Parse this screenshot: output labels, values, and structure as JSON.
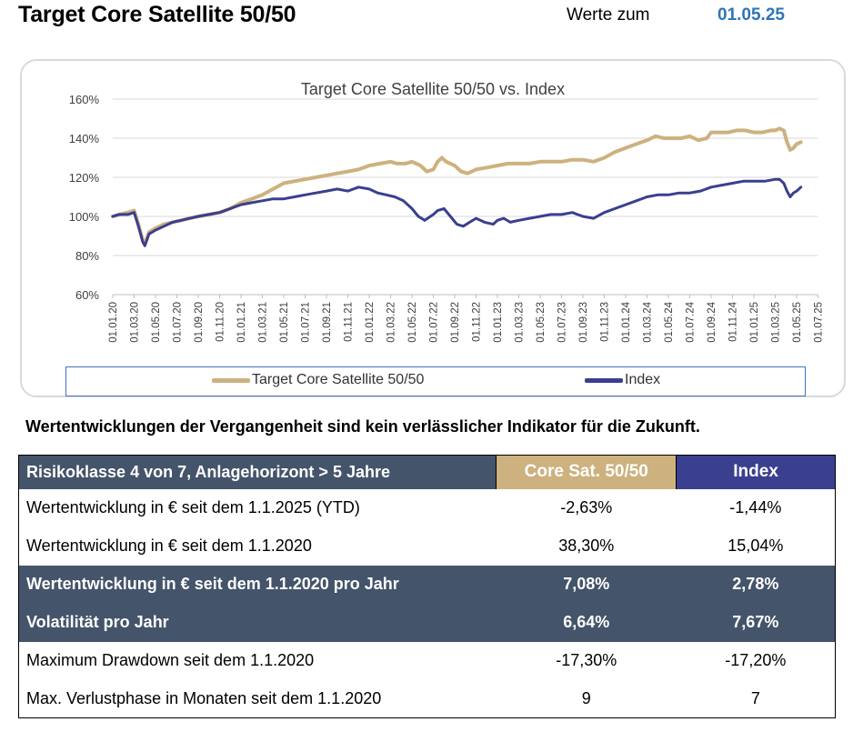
{
  "header": {
    "title": "Target Core Satellite 50/50",
    "date_label": "Werte zum",
    "date_value": "01.05.25"
  },
  "colors": {
    "portfolio": "#cdb17f",
    "index": "#3a3f8f",
    "table_dark": "#44546a",
    "date_accent": "#2e75b6"
  },
  "chart_data": {
    "type": "line",
    "title": "Target Core Satellite 50/50 vs. Index",
    "y_ticks": [
      "60%",
      "80%",
      "100%",
      "120%",
      "140%",
      "160%"
    ],
    "ylim": [
      60,
      160
    ],
    "x_ticks": [
      "01.01.20",
      "01.03.20",
      "01.05.20",
      "01.07.20",
      "01.09.20",
      "01.11.20",
      "01.01.21",
      "01.03.21",
      "01.05.21",
      "01.07.21",
      "01.09.21",
      "01.11.21",
      "01.01.22",
      "01.03.22",
      "01.05.22",
      "01.07.22",
      "01.09.22",
      "01.11.22",
      "01.01.23",
      "01.03.23",
      "01.05.23",
      "01.07.23",
      "01.09.23",
      "01.11.23",
      "01.01.24",
      "01.03.24",
      "01.05.24",
      "01.07.24",
      "01.09.24",
      "01.11.24",
      "01.01.25",
      "01.03.25",
      "01.05.25",
      "01.07.25"
    ],
    "grid": "horizontal",
    "legend_position": "bottom",
    "series": [
      {
        "name": "Target Core Satellite 50/50",
        "points": [
          [
            0,
            100
          ],
          [
            0.3,
            101
          ],
          [
            0.7,
            102
          ],
          [
            1,
            103
          ],
          [
            1.2,
            96
          ],
          [
            1.4,
            88
          ],
          [
            1.5,
            86
          ],
          [
            1.7,
            92
          ],
          [
            2,
            94
          ],
          [
            2.4,
            96
          ],
          [
            2.8,
            97
          ],
          [
            3.2,
            98
          ],
          [
            3.6,
            99
          ],
          [
            4,
            100
          ],
          [
            4.5,
            101
          ],
          [
            5,
            102
          ],
          [
            5.5,
            104
          ],
          [
            6,
            107
          ],
          [
            6.5,
            109
          ],
          [
            7,
            111
          ],
          [
            7.5,
            114
          ],
          [
            8,
            117
          ],
          [
            8.5,
            118
          ],
          [
            9,
            119
          ],
          [
            9.5,
            120
          ],
          [
            10,
            121
          ],
          [
            10.5,
            122
          ],
          [
            11,
            123
          ],
          [
            11.5,
            124
          ],
          [
            12,
            126
          ],
          [
            12.5,
            127
          ],
          [
            13,
            128
          ],
          [
            13.3,
            127
          ],
          [
            13.7,
            127
          ],
          [
            14,
            128
          ],
          [
            14.4,
            126
          ],
          [
            14.7,
            123
          ],
          [
            15,
            124
          ],
          [
            15.2,
            128
          ],
          [
            15.4,
            130
          ],
          [
            15.6,
            128
          ],
          [
            16,
            126
          ],
          [
            16.3,
            123
          ],
          [
            16.6,
            122
          ],
          [
            17,
            124
          ],
          [
            17.5,
            125
          ],
          [
            18,
            126
          ],
          [
            18.5,
            127
          ],
          [
            19,
            127
          ],
          [
            19.5,
            127
          ],
          [
            20,
            128
          ],
          [
            20.5,
            128
          ],
          [
            21,
            128
          ],
          [
            21.5,
            129
          ],
          [
            22,
            129
          ],
          [
            22.5,
            128
          ],
          [
            23,
            130
          ],
          [
            23.5,
            133
          ],
          [
            24,
            135
          ],
          [
            24.5,
            137
          ],
          [
            25,
            139
          ],
          [
            25.4,
            141
          ],
          [
            25.8,
            140
          ],
          [
            26.2,
            140
          ],
          [
            26.6,
            140
          ],
          [
            27,
            141
          ],
          [
            27.4,
            139
          ],
          [
            27.8,
            140
          ],
          [
            28,
            143
          ],
          [
            28.4,
            143
          ],
          [
            28.8,
            143
          ],
          [
            29.2,
            144
          ],
          [
            29.6,
            144
          ],
          [
            30,
            143
          ],
          [
            30.4,
            143
          ],
          [
            30.8,
            144
          ],
          [
            31,
            144
          ],
          [
            31.2,
            145
          ],
          [
            31.4,
            144
          ],
          [
            31.55,
            138
          ],
          [
            31.7,
            134
          ],
          [
            31.85,
            135
          ],
          [
            32,
            137
          ],
          [
            32.2,
            138
          ]
        ]
      },
      {
        "name": "Index",
        "points": [
          [
            0,
            100
          ],
          [
            0.3,
            101
          ],
          [
            0.7,
            101
          ],
          [
            1,
            102
          ],
          [
            1.2,
            95
          ],
          [
            1.4,
            87
          ],
          [
            1.5,
            85
          ],
          [
            1.7,
            91
          ],
          [
            2,
            93
          ],
          [
            2.4,
            95
          ],
          [
            2.8,
            97
          ],
          [
            3.2,
            98
          ],
          [
            3.6,
            99
          ],
          [
            4,
            100
          ],
          [
            4.5,
            101
          ],
          [
            5,
            102
          ],
          [
            5.5,
            104
          ],
          [
            6,
            106
          ],
          [
            6.5,
            107
          ],
          [
            7,
            108
          ],
          [
            7.5,
            109
          ],
          [
            8,
            109
          ],
          [
            8.5,
            110
          ],
          [
            9,
            111
          ],
          [
            9.5,
            112
          ],
          [
            10,
            113
          ],
          [
            10.5,
            114
          ],
          [
            11,
            113
          ],
          [
            11.5,
            115
          ],
          [
            12,
            114
          ],
          [
            12.4,
            112
          ],
          [
            12.8,
            111
          ],
          [
            13.2,
            110
          ],
          [
            13.6,
            108
          ],
          [
            14,
            104
          ],
          [
            14.3,
            100
          ],
          [
            14.6,
            98
          ],
          [
            15,
            101
          ],
          [
            15.2,
            103
          ],
          [
            15.5,
            104
          ],
          [
            15.8,
            100
          ],
          [
            16.1,
            96
          ],
          [
            16.4,
            95
          ],
          [
            16.7,
            97
          ],
          [
            17,
            99
          ],
          [
            17.4,
            97
          ],
          [
            17.8,
            96
          ],
          [
            18,
            98
          ],
          [
            18.3,
            99
          ],
          [
            18.6,
            97
          ],
          [
            19,
            98
          ],
          [
            19.5,
            99
          ],
          [
            20,
            100
          ],
          [
            20.5,
            101
          ],
          [
            21,
            101
          ],
          [
            21.5,
            102
          ],
          [
            22,
            100
          ],
          [
            22.5,
            99
          ],
          [
            23,
            102
          ],
          [
            23.5,
            104
          ],
          [
            24,
            106
          ],
          [
            24.5,
            108
          ],
          [
            25,
            110
          ],
          [
            25.5,
            111
          ],
          [
            26,
            111
          ],
          [
            26.5,
            112
          ],
          [
            27,
            112
          ],
          [
            27.5,
            113
          ],
          [
            28,
            115
          ],
          [
            28.5,
            116
          ],
          [
            29,
            117
          ],
          [
            29.5,
            118
          ],
          [
            30,
            118
          ],
          [
            30.5,
            118
          ],
          [
            31,
            119
          ],
          [
            31.2,
            119
          ],
          [
            31.4,
            117
          ],
          [
            31.55,
            113
          ],
          [
            31.7,
            110
          ],
          [
            31.85,
            112
          ],
          [
            32,
            113
          ],
          [
            32.2,
            115
          ]
        ]
      }
    ]
  },
  "legend": {
    "portfolio": "Target Core Satellite 50/50",
    "index": "Index"
  },
  "disclaimer": "Wertentwicklungen der Vergangenheit sind kein verlässlicher Indikator für die Zukunft.",
  "table": {
    "header": [
      "Risikoklasse 4 von 7, Anlagehorizont > 5 Jahre",
      "Core Sat. 50/50",
      "Index"
    ],
    "rows": [
      {
        "label": "Wertentwicklung in € seit dem 1.1.2025 (YTD)",
        "core": "-2,63%",
        "index": "-1,44%",
        "dark": false
      },
      {
        "label": "Wertentwicklung in € seit dem 1.1.2020",
        "core": "38,30%",
        "index": "15,04%",
        "dark": false
      },
      {
        "label": "Wertentwicklung in € seit dem 1.1.2020 pro Jahr",
        "core": "7,08%",
        "index": "2,78%",
        "dark": true
      },
      {
        "label": "Volatilität pro Jahr",
        "core": "6,64%",
        "index": "7,67%",
        "dark": true
      },
      {
        "label": "Maximum Drawdown seit dem 1.1.2020",
        "core": "-17,30%",
        "index": "-17,20%",
        "dark": false
      },
      {
        "label": "Max. Verlustphase in Monaten seit dem 1.1.2020",
        "core": "9",
        "index": "7",
        "dark": false
      }
    ]
  }
}
